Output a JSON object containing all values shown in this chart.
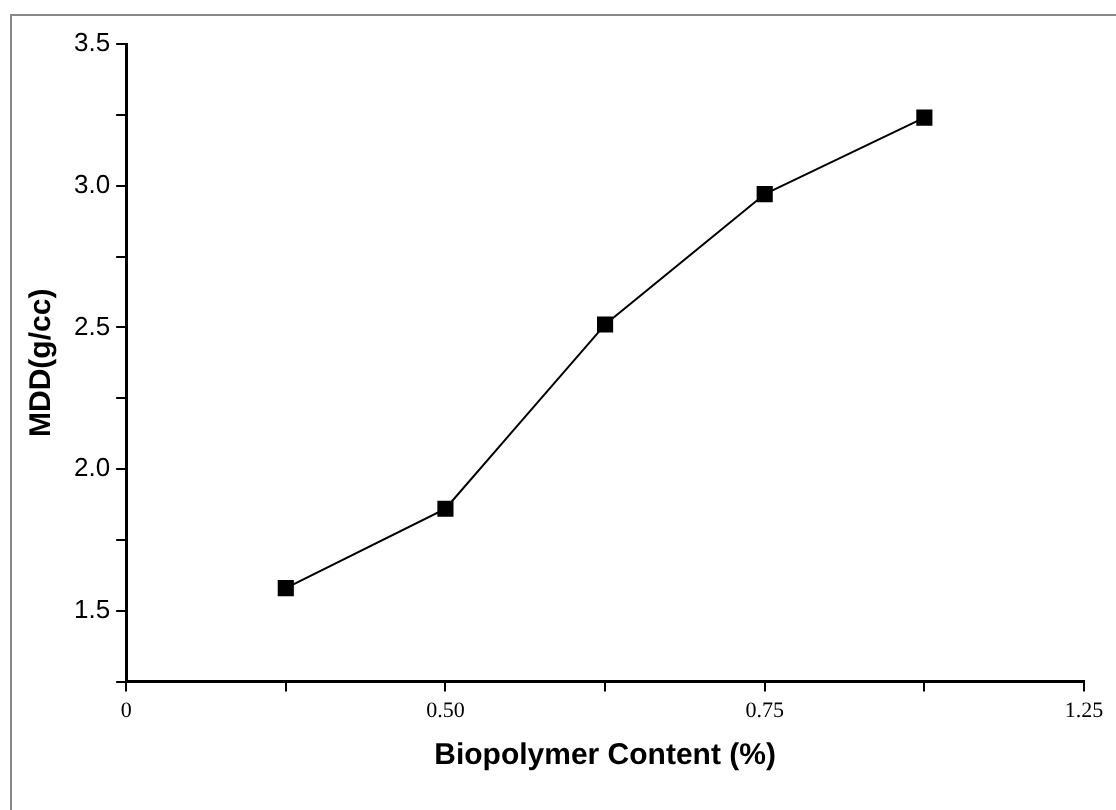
{
  "chart_data": {
    "type": "line",
    "xlabel": "Biopolymer Content (%)",
    "ylabel": "MDD(g/cc)",
    "categories": [
      "0",
      null,
      "0.50",
      null,
      "0.75",
      null,
      "1.25"
    ],
    "series": [
      {
        "color": "#000000",
        "values": [
          null,
          1.58,
          1.86,
          2.51,
          2.97,
          3.24,
          null
        ]
      }
    ],
    "ylim": [
      1.25,
      3.5
    ],
    "yticks": [
      {
        "value": 1.25,
        "label": null
      },
      1.5,
      {
        "value": 1.75,
        "label": null
      },
      {
        "value": 2,
        "label": "2.0"
      },
      {
        "value": 2.25,
        "label": null
      },
      2.5,
      {
        "value": 2.75,
        "label": null
      },
      {
        "value": 3,
        "label": "3.0"
      },
      {
        "value": 3.25,
        "label": null
      },
      3.5
    ],
    "grid": false,
    "legend": false,
    "marker": "square",
    "line_style": "solid"
  }
}
